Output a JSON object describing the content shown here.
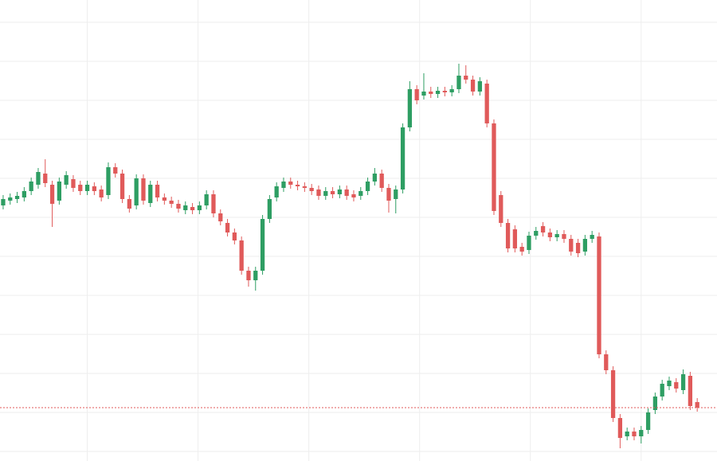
{
  "chart_data": {
    "type": "candlestick",
    "up_color": "#2e9e63",
    "down_color": "#e05a5a",
    "grid": true,
    "xlim": [
      -0.45,
      101.82
    ],
    "xticks": [
      12,
      27.8,
      43.6,
      59.4,
      75.2,
      91
    ],
    "ylim": [
      -12,
      567
    ],
    "yticks": [
      0,
      49,
      98,
      147,
      196,
      245,
      294,
      343,
      392,
      441,
      490,
      539
    ],
    "price_line": 55,
    "price_line_color": "#e05a5a",
    "open": [
      309,
      315,
      317,
      319,
      327,
      335,
      349,
      335,
      315,
      335,
      342,
      335,
      327,
      333,
      329,
      322,
      357,
      349,
      317,
      309,
      343,
      312,
      335,
      319,
      315,
      311,
      303,
      307,
      303,
      309,
      323,
      299,
      287,
      275,
      265,
      227,
      215,
      227,
      292,
      319,
      331,
      339,
      335,
      333,
      331,
      329,
      321,
      327,
      323,
      329,
      323,
      321,
      327,
      339,
      349,
      331,
      317,
      329,
      407,
      455,
      447,
      452,
      449,
      453,
      451,
      455,
      472,
      467,
      452,
      462,
      412,
      322,
      287,
      279,
      257,
      253,
      271,
      283,
      275,
      269,
      273,
      267,
      262,
      251,
      267,
      270,
      122,
      102,
      42,
      19,
      25,
      19,
      27,
      52,
      69,
      82,
      87,
      77,
      95,
      62
    ],
    "high": [
      322,
      324,
      326,
      332,
      344,
      356,
      367,
      340,
      344,
      352,
      347,
      340,
      340,
      338,
      334,
      363,
      362,
      354,
      322,
      348,
      348,
      340,
      340,
      324,
      320,
      316,
      314,
      312,
      314,
      328,
      328,
      304,
      292,
      280,
      270,
      232,
      232,
      297,
      322,
      338,
      344,
      344,
      340,
      338,
      336,
      334,
      332,
      332,
      334,
      334,
      328,
      332,
      344,
      356,
      354,
      336,
      334,
      412,
      465,
      460,
      475,
      458,
      458,
      458,
      460,
      487,
      485,
      472,
      470,
      467,
      417,
      327,
      292,
      284,
      262,
      276,
      282,
      288,
      280,
      278,
      278,
      272,
      267,
      272,
      277,
      275,
      127,
      107,
      47,
      30,
      30,
      32,
      54,
      74,
      90,
      94,
      92,
      103,
      100,
      67
    ],
    "low": [
      304,
      310,
      312,
      314,
      322,
      330,
      332,
      282,
      310,
      330,
      326,
      322,
      322,
      322,
      314,
      317,
      344,
      312,
      300,
      304,
      310,
      307,
      314,
      310,
      306,
      300,
      298,
      298,
      298,
      304,
      294,
      284,
      270,
      260,
      222,
      207,
      202,
      222,
      287,
      314,
      326,
      330,
      328,
      326,
      322,
      316,
      316,
      318,
      318,
      316,
      314,
      316,
      322,
      334,
      326,
      300,
      299,
      324,
      402,
      436,
      442,
      444,
      444,
      446,
      446,
      450,
      462,
      447,
      447,
      407,
      297,
      282,
      250,
      250,
      246,
      248,
      266,
      270,
      264,
      264,
      262,
      246,
      244,
      246,
      262,
      117,
      97,
      37,
      4,
      14,
      14,
      10,
      22,
      47,
      64,
      77,
      74,
      72,
      52,
      50
    ],
    "close": [
      317,
      319,
      321,
      327,
      339,
      351,
      337,
      311,
      339,
      347,
      331,
      327,
      335,
      327,
      319,
      357,
      349,
      317,
      305,
      343,
      315,
      335,
      319,
      315,
      311,
      305,
      309,
      303,
      309,
      323,
      299,
      289,
      275,
      265,
      227,
      215,
      227,
      292,
      317,
      333,
      339,
      335,
      333,
      331,
      327,
      321,
      327,
      323,
      329,
      321,
      319,
      327,
      339,
      349,
      331,
      315,
      329,
      407,
      455,
      441,
      452,
      449,
      453,
      451,
      455,
      472,
      467,
      452,
      465,
      412,
      302,
      287,
      255,
      255,
      251,
      271,
      277,
      275,
      269,
      273,
      267,
      251,
      249,
      267,
      272,
      122,
      102,
      42,
      17,
      25,
      19,
      27,
      49,
      69,
      85,
      89,
      79,
      97,
      57,
      55
    ]
  }
}
